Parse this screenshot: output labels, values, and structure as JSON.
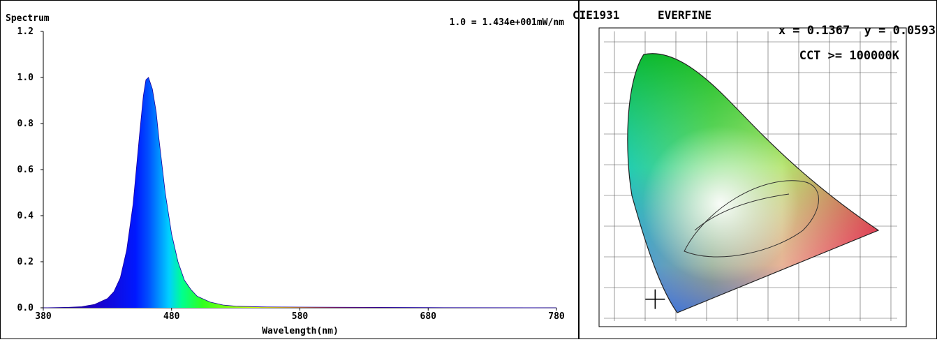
{
  "chart_data": [
    {
      "type": "area",
      "title": "Spectrum",
      "annotation": "1.0 = 1.434e+001mW/nm",
      "xlabel": "Wavelength(nm)",
      "ylabel": "",
      "xlim": [
        380,
        780
      ],
      "ylim": [
        0,
        1.2
      ],
      "x_ticks": [
        "380",
        "480",
        "580",
        "680",
        "780"
      ],
      "y_ticks": [
        "0.0",
        "0.2",
        "0.4",
        "0.6",
        "0.8",
        "1.0",
        "1.2"
      ],
      "grid": false,
      "series": [
        {
          "x": [
            380,
            400,
            410,
            420,
            430,
            435,
            440,
            445,
            450,
            455,
            458,
            460,
            462,
            465,
            468,
            470,
            475,
            480,
            485,
            490,
            495,
            500,
            510,
            520,
            530,
            550,
            580,
            620,
            680,
            780
          ],
          "values": [
            0.0,
            0.002,
            0.005,
            0.015,
            0.04,
            0.07,
            0.13,
            0.25,
            0.45,
            0.75,
            0.92,
            0.99,
            1.0,
            0.95,
            0.85,
            0.74,
            0.5,
            0.32,
            0.2,
            0.12,
            0.08,
            0.05,
            0.025,
            0.012,
            0.007,
            0.004,
            0.003,
            0.002,
            0.001,
            0.0
          ]
        }
      ]
    },
    {
      "type": "scatter",
      "title": "CIE1931",
      "brand": "EVERFINE",
      "coordinate_text": "x = 0.1367  y = 0.0593",
      "cct_text": "CCT >= 100000K",
      "xlim": [
        0.0,
        0.8
      ],
      "ylim": [
        0.0,
        0.9
      ],
      "series": [
        {
          "x": [
            0.1367
          ],
          "values": [
            0.0593
          ]
        }
      ]
    }
  ]
}
